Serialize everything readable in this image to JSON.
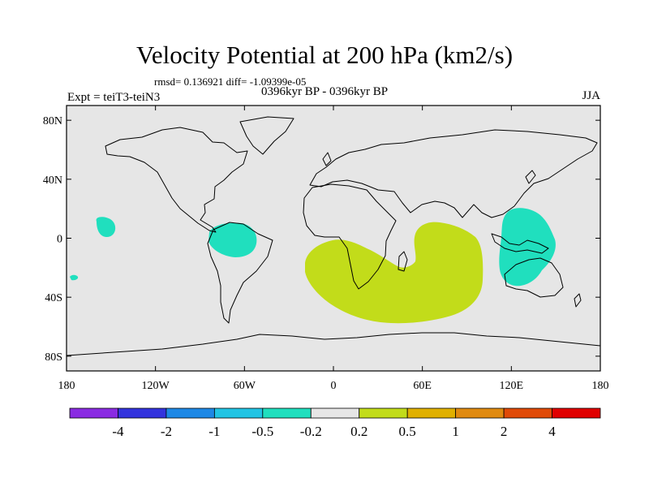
{
  "title": "Velocity Potential at 200 hPa (km2/s)",
  "stats": "rmsd= 0.136921 diff= -1.09399e-05",
  "experiment": "Expt = teiT3-teiN3",
  "period": "0396kyr BP - 0396kyr BP",
  "season": "JJA",
  "map": {
    "lon_range": [
      -180,
      180
    ],
    "lat_range": [
      -90,
      90
    ],
    "background_color": "#e6e6e6",
    "lon_ticks": [
      {
        "value": -180,
        "label": "180"
      },
      {
        "value": -120,
        "label": "120W"
      },
      {
        "value": -60,
        "label": "60W"
      },
      {
        "value": 0,
        "label": "0"
      },
      {
        "value": 60,
        "label": "60E"
      },
      {
        "value": 120,
        "label": "120E"
      },
      {
        "value": 180,
        "label": "180"
      }
    ],
    "lat_ticks": [
      {
        "value": 80,
        "label": "80N"
      },
      {
        "value": 40,
        "label": "40N"
      },
      {
        "value": 0,
        "label": "0"
      },
      {
        "value": -40,
        "label": "40S"
      },
      {
        "value": -80,
        "label": "80S"
      }
    ]
  },
  "colorbar": {
    "colors": [
      "#8a2be2",
      "#3333dd",
      "#1e88e5",
      "#22c4e4",
      "#20dfbe",
      "#e6e6e6",
      "#c2dc1a",
      "#e0b000",
      "#e08a10",
      "#e04a08",
      "#e00000"
    ],
    "labels": [
      "-4",
      "-2",
      "-1",
      "-0.5",
      "-0.2",
      "0.2",
      "0.5",
      "1",
      "2",
      "4"
    ]
  },
  "anomalies": [
    {
      "name": "central-pacific-negative",
      "category": "-0.2",
      "color": "#20dfbe"
    },
    {
      "name": "south-america-negative",
      "category": "-0.2",
      "color": "#20dfbe"
    },
    {
      "name": "south-pacific-negative",
      "category": "-0.2",
      "color": "#20dfbe"
    },
    {
      "name": "maritime-continent-negative",
      "category": "-0.2",
      "color": "#20dfbe"
    },
    {
      "name": "africa-indian-ocean-positive",
      "category": "0.2",
      "color": "#c2dc1a"
    }
  ]
}
